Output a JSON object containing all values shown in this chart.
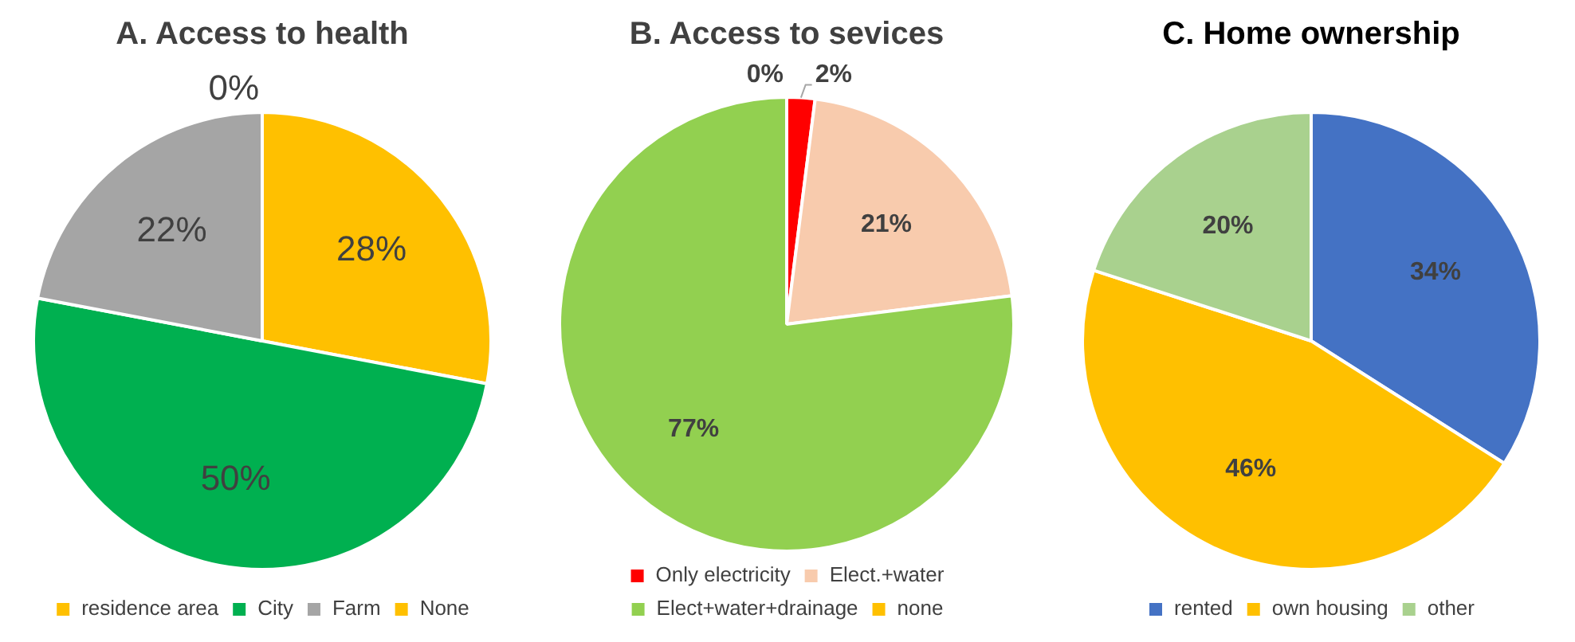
{
  "chart_data": [
    {
      "type": "pie",
      "title": "A. Access to health",
      "categories": [
        "residence area",
        "City",
        "Farm",
        "None"
      ],
      "values": [
        28,
        50,
        22,
        0
      ],
      "colors": [
        "#ffc000",
        "#00b050",
        "#a5a5a5",
        "#ffc000"
      ],
      "value_labels": [
        "28%",
        "50%",
        "22%",
        "0%"
      ],
      "legend": "bottom"
    },
    {
      "type": "pie",
      "title": "B. Access to sevices",
      "categories": [
        "Only electricity",
        "Elect.+water",
        "Elect+water+drainage",
        "none"
      ],
      "values": [
        2,
        21,
        77,
        0
      ],
      "colors": [
        "#ff0000",
        "#f8cbad",
        "#92d050",
        "#ffc000"
      ],
      "value_labels": [
        "2%",
        "21%",
        "77%",
        "0%"
      ],
      "legend": "bottom"
    },
    {
      "type": "pie",
      "title": "C. Home ownership",
      "categories": [
        "rented",
        "own housing",
        "other"
      ],
      "values": [
        34,
        46,
        20
      ],
      "colors": [
        "#4472c4",
        "#ffc000",
        "#a9d18e"
      ],
      "value_labels": [
        "34%",
        "46%",
        "20%"
      ],
      "legend": "bottom"
    }
  ]
}
